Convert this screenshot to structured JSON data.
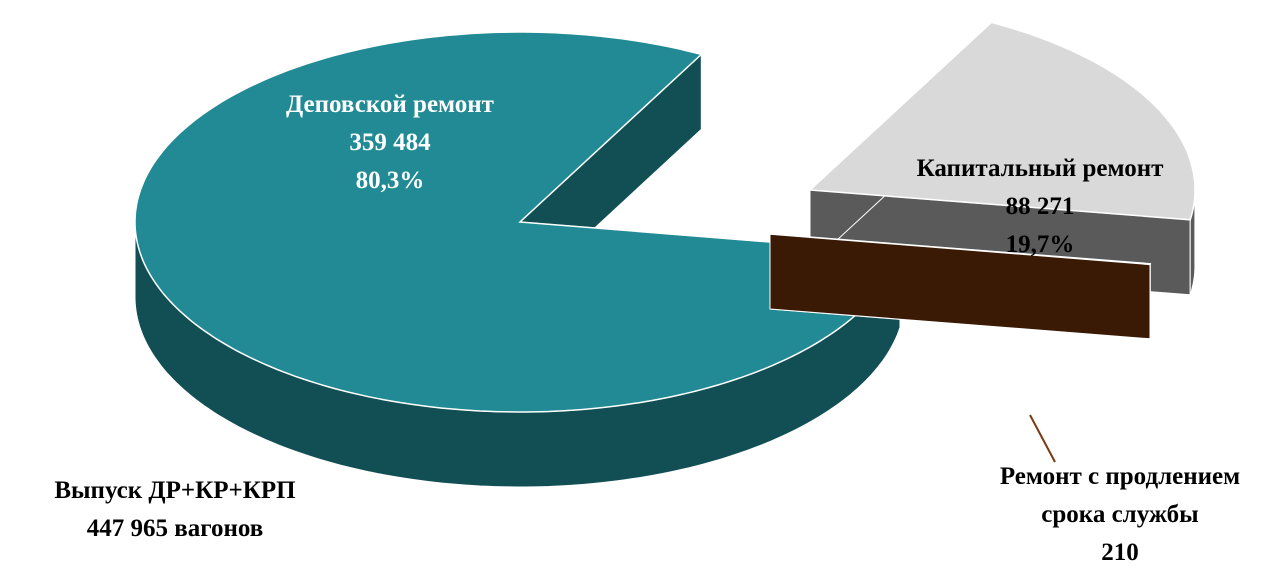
{
  "chart_data": {
    "type": "pie3d",
    "categories": [
      "Деповской ремонт",
      "Капитальный ремонт",
      "Ремонт с продлением срока службы"
    ],
    "values": [
      359484,
      88271,
      210
    ],
    "value_labels": [
      "359 484",
      "88 271",
      "210"
    ],
    "percents": [
      80.3,
      19.7,
      null
    ],
    "percent_labels": [
      "80,3%",
      "19,7%",
      null
    ],
    "colors": [
      "#218a94",
      "#d9d9d9",
      "#4a2205"
    ],
    "side_colors": [
      "#124f55",
      "#5a5a5a",
      "#3a1a04"
    ],
    "annotation": [
      "Выпуск ДР+КР+КРП",
      "447 965 вагонов"
    ]
  }
}
